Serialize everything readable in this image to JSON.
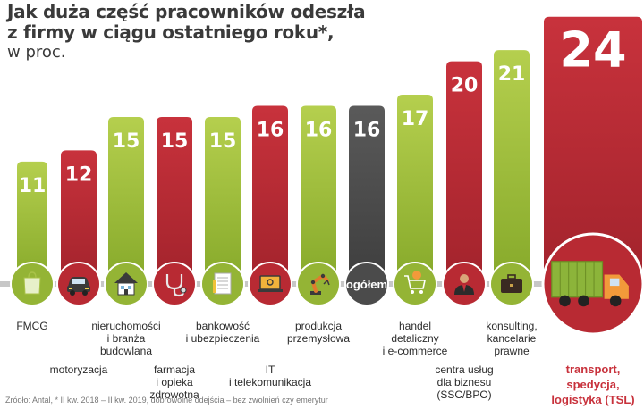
{
  "title_lines": [
    "Jak duża część pracowników odeszła",
    "z firmy w ciągu ostatniego roku*,"
  ],
  "subtitle": "w proc.",
  "footnote": "Źródło: Antal, * II kw. 2018 – II kw. 2019, dobrowolne odejścia – bez zwolnień czy emerytur",
  "colors": {
    "green_top": "#b5cf4e",
    "green_bottom": "#86a92a",
    "red_top": "#c8323c",
    "red_bottom": "#a2232c",
    "dark_top": "#5a5a5a",
    "dark_bottom": "#3e3e3e",
    "baseline": "#c7c7c7",
    "label_text": "#2b2b2b",
    "highlight_text": "#c8323c"
  },
  "chart_data": {
    "type": "bar",
    "unit": "w proc.",
    "categories": [
      "FMCG",
      "motoryzacja",
      "nieruchomości i branża budowlana",
      "farmacja i opieka zdrowotna",
      "bankowość i ubezpieczenia",
      "IT i telekomunikacja",
      "produkcja przemysłowa",
      "ogółem",
      "handel detaliczny i e-commerce",
      "centra usług dla biznesu (SSC/BPO)",
      "konsulting, kancelarie prawne",
      "transport, spedycja, logistyka (TSL)"
    ],
    "values": [
      11,
      12,
      15,
      15,
      15,
      16,
      16,
      16,
      17,
      20,
      21,
      24
    ],
    "bar_colors": [
      "green",
      "red",
      "green",
      "red",
      "green",
      "red",
      "green",
      "dark",
      "green",
      "red",
      "green",
      "red"
    ],
    "highlight_index": 11,
    "legend": "none",
    "grid": false
  },
  "bars": [
    {
      "value_label": "11",
      "icon": "shopping-bag-icon",
      "label_lines": [
        "FMCG"
      ]
    },
    {
      "value_label": "12",
      "icon": "car-icon",
      "label_lines": [
        "motoryzacja"
      ]
    },
    {
      "value_label": "15",
      "icon": "house-icon",
      "label_lines": [
        "nieruchomości",
        "i branża",
        "budowlana"
      ]
    },
    {
      "value_label": "15",
      "icon": "stethoscope-icon",
      "label_lines": [
        "farmacja",
        "i opieka",
        "zdrowotna"
      ]
    },
    {
      "value_label": "15",
      "icon": "insurance-document-icon",
      "label_lines": [
        "bankowość",
        "i ubezpieczenia"
      ]
    },
    {
      "value_label": "16",
      "icon": "laptop-icon",
      "label_lines": [
        "IT",
        "i telekomunikacja"
      ]
    },
    {
      "value_label": "16",
      "icon": "robotic-arm-icon",
      "label_lines": [
        "produkcja",
        "przemysłowa"
      ]
    },
    {
      "value_label": "16",
      "icon": "",
      "circle_text": "ogółem",
      "label_lines": []
    },
    {
      "value_label": "17",
      "icon": "shopping-cart-icon",
      "label_lines": [
        "handel",
        "detaliczny",
        "i e-commerce"
      ]
    },
    {
      "value_label": "20",
      "icon": "businessman-icon",
      "label_lines": [
        "centra usług",
        "dla biznesu",
        "(SSC/BPO)"
      ]
    },
    {
      "value_label": "21",
      "icon": "briefcase-icon",
      "label_lines": [
        "konsulting,",
        "kancelarie",
        "prawne"
      ]
    },
    {
      "value_label": "24",
      "icon": "truck-icon",
      "label_lines": [
        "transport,",
        "spedycja,",
        "logistyka (TSL)"
      ]
    }
  ]
}
